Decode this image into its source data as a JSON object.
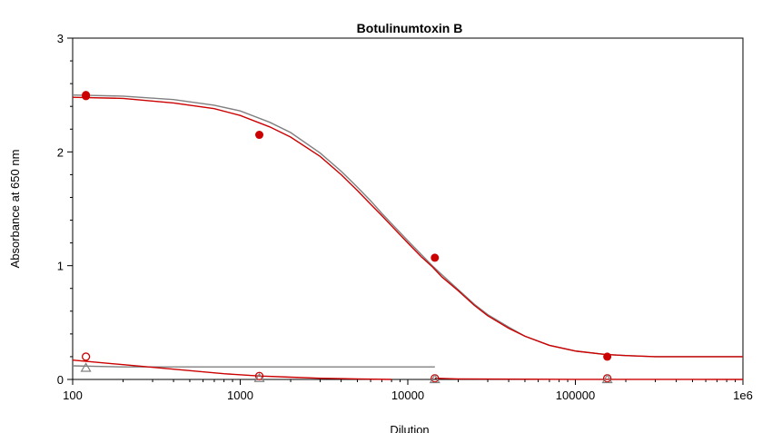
{
  "chart_data": {
    "type": "scatter",
    "title": "Botulinumtoxin B",
    "xlabel": "Dilution",
    "ylabel": "Absorbance at 650 nm",
    "x_scale": "log",
    "xlim": [
      100,
      1000000
    ],
    "ylim": [
      0,
      3
    ],
    "x_ticks": [
      100,
      1000,
      10000,
      100000,
      1000000
    ],
    "x_tick_labels": [
      "100",
      "1000",
      "10000",
      "100000",
      "1e6"
    ],
    "y_ticks": [
      0,
      1,
      2,
      3
    ],
    "y_tick_labels": [
      "0",
      "1",
      "2",
      "3"
    ],
    "grid": false,
    "legend": "none",
    "series": [
      {
        "marker": "filled-circle",
        "color": "#cc0000",
        "x": [
          120,
          120,
          1300,
          14500,
          155000
        ],
        "y": [
          2.49,
          2.5,
          2.15,
          1.07,
          0.2
        ]
      },
      {
        "marker": "open-circle",
        "color": "#cc0000",
        "x": [
          120,
          1300,
          14500,
          155000
        ],
        "y": [
          0.2,
          0.03,
          0.01,
          0.01
        ]
      },
      {
        "marker": "open-triangle",
        "color": "#808080",
        "x": [
          120,
          1300,
          14500,
          155000
        ],
        "y": [
          0.1,
          0.01,
          0.0,
          0.0
        ]
      },
      {
        "marker": "line",
        "color": "#808080",
        "x": [
          100,
          200,
          400,
          700,
          1000,
          1500,
          2000,
          3000,
          4000,
          5000,
          6000,
          7000,
          8000,
          9000,
          10000,
          12000,
          14000,
          16000,
          20000,
          25000,
          30000,
          40000,
          50000,
          70000,
          100000,
          150000,
          200000,
          300000,
          500000,
          1000000
        ],
        "y": [
          2.5,
          2.49,
          2.46,
          2.41,
          2.36,
          2.26,
          2.17,
          1.99,
          1.83,
          1.69,
          1.57,
          1.46,
          1.37,
          1.29,
          1.22,
          1.1,
          1.0,
          0.92,
          0.79,
          0.66,
          0.57,
          0.46,
          0.38,
          0.3,
          0.25,
          0.22,
          0.21,
          0.2,
          0.2,
          0.2
        ]
      },
      {
        "marker": "line",
        "color": "#cc0000",
        "x": [
          100,
          200,
          400,
          700,
          1000,
          1500,
          2000,
          3000,
          4000,
          5000,
          6000,
          7000,
          8000,
          9000,
          10000,
          12000,
          14000,
          16000,
          20000,
          25000,
          30000,
          40000,
          50000,
          70000,
          100000,
          150000,
          200000,
          300000,
          500000,
          1000000
        ],
        "y": [
          2.48,
          2.47,
          2.43,
          2.38,
          2.32,
          2.22,
          2.13,
          1.96,
          1.8,
          1.66,
          1.54,
          1.44,
          1.35,
          1.27,
          1.2,
          1.08,
          0.99,
          0.9,
          0.78,
          0.65,
          0.56,
          0.45,
          0.38,
          0.3,
          0.25,
          0.22,
          0.21,
          0.2,
          0.2,
          0.2
        ]
      },
      {
        "marker": "line",
        "color": "#808080",
        "x": [
          100,
          200,
          500,
          1000,
          2000,
          5000,
          10000,
          14500
        ],
        "y": [
          0.12,
          0.11,
          0.11,
          0.11,
          0.11,
          0.11,
          0.11,
          0.11
        ]
      },
      {
        "marker": "line",
        "color": "#cc0000",
        "x": [
          100,
          200,
          400,
          800,
          1300,
          2000,
          3000,
          5000,
          8000
        ],
        "y": [
          0.17,
          0.13,
          0.09,
          0.05,
          0.03,
          0.02,
          0.01,
          0.005,
          0.0
        ]
      },
      {
        "marker": "line",
        "color": "#cc0000",
        "x": [
          14500,
          20000,
          50000,
          100000,
          1000000
        ],
        "y": [
          0.01,
          0.005,
          0.002,
          0.001,
          0.0
        ]
      }
    ]
  }
}
